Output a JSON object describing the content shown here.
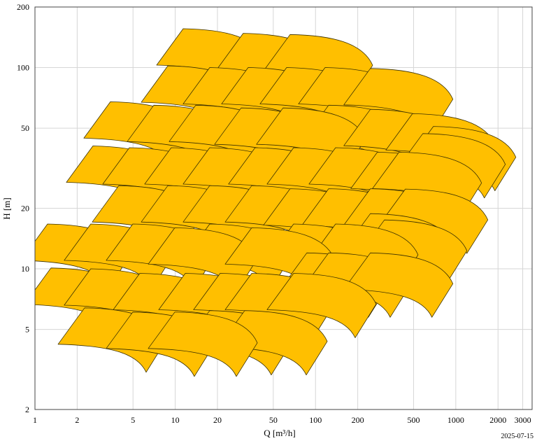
{
  "chart_data": {
    "type": "area",
    "title": "",
    "xlabel": "Q [m³/h]",
    "ylabel": "H [m]",
    "xscale": "log",
    "yscale": "log",
    "xlim": [
      1,
      3500
    ],
    "ylim": [
      2,
      200
    ],
    "grid": true,
    "xticks": [
      1,
      2,
      5,
      10,
      20,
      50,
      100,
      200,
      500,
      1000,
      2000,
      3000
    ],
    "xtick_labels": [
      "1",
      "2",
      "5",
      "10",
      "20",
      "50",
      "100",
      "200",
      "500",
      "1000",
      "2000",
      "3000"
    ],
    "yticks": [
      2,
      5,
      10,
      20,
      50,
      100,
      200
    ],
    "ytick_labels": [
      "2",
      "5",
      "10",
      "20",
      "50",
      "100",
      "200"
    ],
    "fill_color": "#FFBF00",
    "edge_color": "#3a3000",
    "series_description": "Pump performance range tiles, each given by its top-left corner [Q m3/h, H m]",
    "tiles": [
      [
        11.4,
        156
      ],
      [
        30.5,
        148
      ],
      [
        65.9,
        146
      ],
      [
        8.85,
        102
      ],
      [
        17.6,
        100
      ],
      [
        33.1,
        100
      ],
      [
        62.2,
        100
      ],
      [
        117,
        100
      ],
      [
        246,
        99
      ],
      [
        3.45,
        67.6
      ],
      [
        7.03,
        65
      ],
      [
        14,
        65
      ],
      [
        29.5,
        63
      ],
      [
        58.7,
        63
      ],
      [
        124,
        65
      ],
      [
        246,
        62
      ],
      [
        491,
        59
      ],
      [
        692,
        51
      ],
      [
        2.59,
        40.8
      ],
      [
        4.71,
        40
      ],
      [
        9.37,
        40
      ],
      [
        17.6,
        40
      ],
      [
        37.1,
        40
      ],
      [
        69.8,
        40
      ],
      [
        139,
        40
      ],
      [
        276,
        38
      ],
      [
        394,
        38
      ],
      [
        582,
        47
      ],
      [
        3.96,
        25.9
      ],
      [
        8.85,
        25.9
      ],
      [
        17.6,
        25.9
      ],
      [
        35.1,
        25.9
      ],
      [
        65.9,
        25
      ],
      [
        124,
        25
      ],
      [
        246,
        25
      ],
      [
        437,
        24.9
      ],
      [
        1.23,
        16.7
      ],
      [
        2.5,
        16.7
      ],
      [
        4.98,
        16.7
      ],
      [
        9.93,
        16
      ],
      [
        17.6,
        16.7
      ],
      [
        35.1,
        16
      ],
      [
        69.8,
        16.7
      ],
      [
        139,
        16.7
      ],
      [
        246,
        18.8
      ],
      [
        310,
        17.5
      ],
      [
        1.3,
        10.1
      ],
      [
        2.5,
        10
      ],
      [
        5.59,
        9.5
      ],
      [
        11.8,
        9.5
      ],
      [
        20.9,
        9.5
      ],
      [
        35.1,
        9.5
      ],
      [
        69.8,
        9.5
      ],
      [
        86.7,
        12
      ],
      [
        124,
        12
      ],
      [
        246,
        12
      ],
      [
        2.26,
        6.4
      ],
      [
        4.98,
        6.1
      ],
      [
        9.93,
        6.1
      ],
      [
        17.6,
        6.2
      ],
      [
        31.3,
        6.2
      ]
    ]
  },
  "footer": {
    "date": "2025-07-15"
  }
}
